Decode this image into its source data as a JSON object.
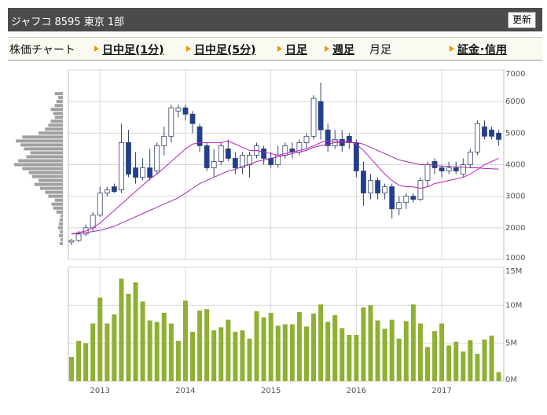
{
  "header": {
    "title": "ジャフコ 8595 東京 1部",
    "button": "更新"
  },
  "tabs": [
    {
      "label": "株価チャート",
      "link": false
    },
    {
      "label": "日中足(1分)",
      "link": true
    },
    {
      "label": "日中足(5分)",
      "link": true
    },
    {
      "label": "日足",
      "link": true
    },
    {
      "label": "週足",
      "link": true
    },
    {
      "label": "月足",
      "link": false
    },
    {
      "label": "証金･信用",
      "link": true
    }
  ],
  "chart_data": [
    {
      "type": "candlestick",
      "categories": [
        null,
        null,
        null,
        null,
        "2013",
        null,
        null,
        null,
        null,
        null,
        null,
        null,
        null,
        null,
        null,
        null,
        "2014",
        null,
        null,
        null,
        null,
        null,
        null,
        null,
        null,
        null,
        null,
        null,
        "2015",
        null,
        null,
        null,
        null,
        null,
        null,
        null,
        null,
        null,
        null,
        null,
        "2016",
        null,
        null,
        null,
        null,
        null,
        null,
        null,
        null,
        null,
        null,
        null,
        "2017",
        null,
        null,
        null,
        null,
        null,
        null,
        null,
        null
      ],
      "open": [
        1550,
        1600,
        1800,
        2000,
        2400,
        3100,
        3300,
        3200,
        4700,
        3900,
        3600,
        3900,
        3800,
        4600,
        4900,
        5700,
        5800,
        5600,
        5200,
        4600,
        3900,
        4100,
        4500,
        4200,
        3900,
        4000,
        4300,
        4500,
        4200,
        4000,
        4300,
        4500,
        4400,
        4700,
        4900,
        6000,
        5100,
        4600,
        4800,
        4900,
        4700,
        3800,
        3100,
        3500,
        3100,
        3300,
        2600,
        2800,
        3000,
        2900,
        3500,
        4100,
        3900,
        3800,
        3900,
        3700,
        4000,
        4400,
        5200,
        5100,
        5000
      ],
      "high": [
        1650,
        1900,
        2100,
        2500,
        3300,
        3300,
        3400,
        5300,
        5100,
        4400,
        4200,
        4500,
        4700,
        5200,
        5900,
        5900,
        5900,
        5700,
        5300,
        4700,
        4500,
        4700,
        4800,
        4400,
        4400,
        4400,
        4700,
        4600,
        4400,
        4600,
        4700,
        4700,
        4800,
        5000,
        6200,
        6600,
        5300,
        5100,
        5100,
        5000,
        4800,
        4100,
        3700,
        3600,
        3400,
        3400,
        3000,
        3100,
        3100,
        3600,
        4100,
        4200,
        4000,
        4100,
        4100,
        4200,
        4500,
        5400,
        5400,
        5200,
        5100
      ],
      "low": [
        1450,
        1550,
        1750,
        1900,
        2350,
        3000,
        3100,
        3100,
        3600,
        3400,
        3500,
        3500,
        3700,
        4300,
        4700,
        5500,
        5400,
        5000,
        4400,
        3800,
        3600,
        4000,
        4100,
        3700,
        3700,
        3600,
        4200,
        4000,
        3900,
        3900,
        4200,
        4200,
        4300,
        4500,
        4800,
        4800,
        4400,
        4500,
        4400,
        4500,
        3600,
        2700,
        2900,
        2900,
        2900,
        2300,
        2400,
        2600,
        2800,
        2850,
        3300,
        3700,
        3600,
        3700,
        3700,
        3600,
        3900,
        4300,
        4800,
        4800,
        4600
      ],
      "close": [
        1600,
        1800,
        2000,
        2400,
        3100,
        3200,
        3150,
        4700,
        3700,
        3600,
        3900,
        3600,
        4600,
        4900,
        5800,
        5800,
        5600,
        5300,
        4600,
        3900,
        4100,
        4600,
        4200,
        3900,
        4300,
        4300,
        4600,
        4200,
        4000,
        4300,
        4600,
        4400,
        4700,
        4900,
        6100,
        5100,
        4600,
        4800,
        4600,
        4700,
        3800,
        3100,
        3500,
        3100,
        3300,
        2600,
        2800,
        3000,
        2900,
        3500,
        4000,
        3900,
        3800,
        3900,
        3800,
        4000,
        4400,
        5300,
        4900,
        4900,
        4800
      ],
      "up_color": "#ffffff",
      "down_color": "#1f3f94",
      "edge_color": "#334466",
      "lines": [
        {
          "color": "#c020c0",
          "values": [
            1800,
            1850,
            1900,
            2000,
            2150,
            2350,
            2550,
            2750,
            2950,
            3150,
            3350,
            3550,
            3700,
            3900,
            4100,
            4300,
            4500,
            4650,
            4700,
            4700,
            4700,
            4700,
            4750,
            4650,
            4550,
            4450,
            4450,
            4400,
            4350,
            4300,
            4350,
            4400,
            4450,
            4500,
            4600,
            4700,
            4750,
            4750,
            4750,
            4750,
            4650,
            4450,
            4200,
            3950,
            3700,
            3500,
            3350,
            3300,
            3300,
            3250,
            3300,
            3400,
            3450,
            3500,
            3550,
            3600,
            3700,
            3850,
            4000,
            4100,
            4200
          ]
        },
        {
          "color": "#9a30b0",
          "values": [
            1800,
            1820,
            1850,
            1880,
            1920,
            1980,
            2050,
            2150,
            2250,
            2350,
            2450,
            2550,
            2650,
            2750,
            2850,
            2950,
            3100,
            3250,
            3400,
            3500,
            3600,
            3700,
            3800,
            3850,
            3950,
            4000,
            4100,
            4150,
            4200,
            4250,
            4300,
            4350,
            4400,
            4450,
            4550,
            4600,
            4650,
            4700,
            4700,
            4700,
            4700,
            4650,
            4550,
            4450,
            4350,
            4250,
            4150,
            4100,
            4050,
            4000,
            4000,
            3980,
            3950,
            3950,
            3930,
            3920,
            3900,
            3900,
            3880,
            3870,
            3860
          ]
        }
      ],
      "ylim": [
        1000,
        7000
      ],
      "yticks": [
        1000,
        2000,
        3000,
        4000,
        5000,
        6000,
        7000
      ],
      "grid": true
    },
    {
      "type": "bar",
      "categories": [
        null,
        null,
        null,
        null,
        "2013",
        null,
        null,
        null,
        null,
        null,
        null,
        null,
        null,
        null,
        null,
        null,
        "2014",
        null,
        null,
        null,
        null,
        null,
        null,
        null,
        null,
        null,
        null,
        null,
        "2015",
        null,
        null,
        null,
        null,
        null,
        null,
        null,
        null,
        null,
        null,
        null,
        "2016",
        null,
        null,
        null,
        null,
        null,
        null,
        null,
        null,
        null,
        null,
        null,
        "2017",
        null,
        null,
        null,
        null,
        null,
        null,
        null,
        null
      ],
      "values": [
        3200000,
        5300000,
        5000000,
        7600000,
        11000000,
        7600000,
        8800000,
        13500000,
        11500000,
        13000000,
        10500000,
        8000000,
        7800000,
        9000000,
        7600000,
        5300000,
        10600000,
        6500000,
        9300000,
        9500000,
        6700000,
        7100000,
        8100000,
        6500000,
        6700000,
        5600000,
        9200000,
        8400000,
        9000000,
        7300000,
        7500000,
        7500000,
        9100000,
        7200000,
        8900000,
        10100000,
        7800000,
        8700000,
        7000000,
        6100000,
        6100000,
        9700000,
        10000000,
        8000000,
        6900000,
        8100000,
        5600000,
        7900000,
        10100000,
        7600000,
        4500000,
        6600000,
        7600000,
        4700000,
        5200000,
        3900000,
        5400000,
        3600000,
        5500000,
        6000000,
        1200000
      ],
      "color": "#8fb032",
      "ylim": [
        0,
        15000000
      ],
      "yticks": [
        {
          "value": 0,
          "label": "0M"
        },
        {
          "value": 5000000,
          "label": "5M"
        },
        {
          "value": 10000000,
          "label": "10M"
        },
        {
          "value": 15000000,
          "label": "15M"
        }
      ],
      "grid": true
    },
    {
      "type": "barh",
      "y": [
        1500,
        1625,
        1750,
        1875,
        2000,
        2125,
        2250,
        2375,
        2500,
        2625,
        2750,
        2875,
        3000,
        3125,
        3250,
        3375,
        3500,
        3625,
        3750,
        3875,
        4000,
        4125,
        4250,
        4375,
        4500,
        4625,
        4750,
        4875,
        5000,
        5125,
        5250,
        5375,
        5500,
        5625,
        5750,
        5875,
        6000,
        6125,
        6250
      ],
      "values": [
        4,
        3,
        5,
        4,
        6,
        5,
        4,
        3,
        8,
        12,
        14,
        10,
        18,
        22,
        28,
        35,
        30,
        38,
        42,
        50,
        60,
        55,
        45,
        40,
        48,
        52,
        58,
        50,
        30,
        22,
        18,
        15,
        10,
        12,
        15,
        10,
        8,
        6,
        10
      ],
      "color": "#a0a0a0",
      "ylim": [
        1000,
        7000
      ]
    }
  ]
}
